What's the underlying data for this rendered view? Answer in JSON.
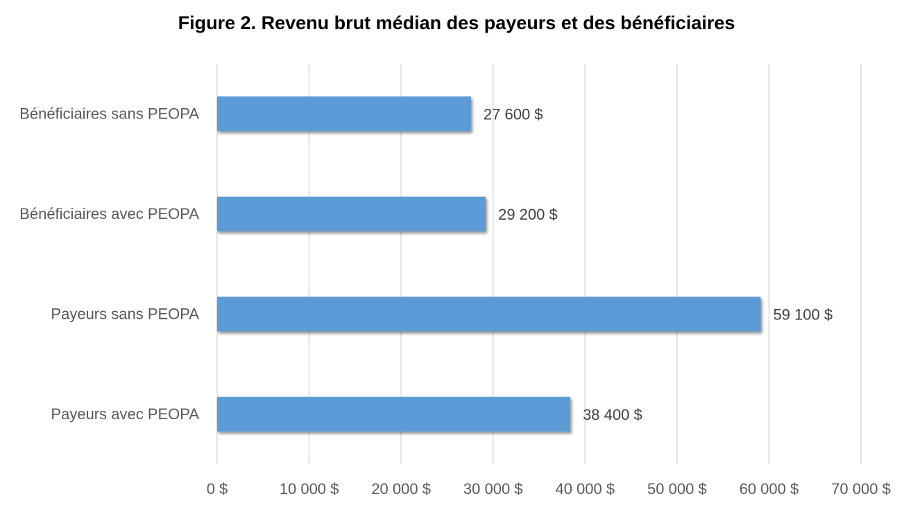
{
  "chart_data": {
    "type": "bar",
    "orientation": "horizontal",
    "title": "Figure 2. Revenu brut médian des payeurs et des bénéficiaires",
    "categories": [
      "Bénéficiaires sans PEOPA",
      "Bénéficiaires avec PEOPA",
      "Payeurs sans PEOPA",
      "Payeurs avec PEOPA"
    ],
    "values": [
      27600,
      29200,
      59100,
      38400
    ],
    "data_labels": [
      "27 600 $",
      "29 200 $",
      "59 100 $",
      "38 400 $"
    ],
    "xlim": [
      0,
      70000
    ],
    "x_ticks": [
      0,
      10000,
      20000,
      30000,
      40000,
      50000,
      60000,
      70000
    ],
    "x_tick_labels": [
      "0 $",
      "10 000 $",
      "20 000 $",
      "30 000 $",
      "40 000 $",
      "50 000 $",
      "60 000 $",
      "70 000 $"
    ],
    "xlabel": "",
    "ylabel": "",
    "grid": "vertical",
    "legend": "none",
    "colors": {
      "bar": "#5B9BD5",
      "grid": "#D9D9D9",
      "text": "#595959"
    }
  }
}
